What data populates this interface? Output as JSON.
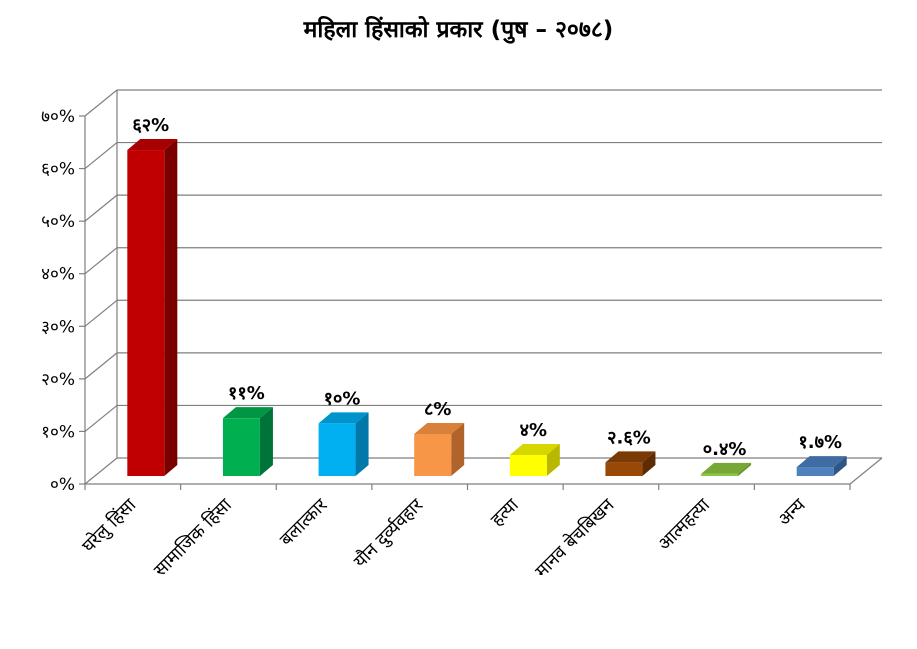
{
  "chart_data": {
    "type": "bar",
    "title": "महिला हिंसाको प्रकार (पुष – २०७८)",
    "categories": [
      "घरेलु हिंसा",
      "सामाजिक हिंसा",
      "बलात्कार",
      "यौन दुर्व्यवहार",
      "हत्या",
      "मानव बेचबिखन",
      "आत्महत्या",
      "अन्य"
    ],
    "values": [
      62,
      11,
      10,
      8,
      4,
      2.6,
      0.4,
      1.7
    ],
    "data_labels": [
      "६२%",
      "११%",
      "१०%",
      "८%",
      "४%",
      "२.६%",
      "०.४%",
      "१.७%"
    ],
    "y_ticks": [
      "०%",
      "१०%",
      "२०%",
      "३०%",
      "४०%",
      "५०%",
      "६०%",
      "७०%"
    ],
    "ylim": [
      0,
      70
    ],
    "grid": true,
    "legend": "none",
    "colors": [
      {
        "front": "#c00000",
        "side": "#7a0000",
        "top": "#a80000"
      },
      {
        "front": "#00b050",
        "side": "#00733a",
        "top": "#009644"
      },
      {
        "front": "#00b0f0",
        "side": "#0078a8",
        "top": "#0094cc"
      },
      {
        "front": "#f79646",
        "side": "#b0642a",
        "top": "#d9803a"
      },
      {
        "front": "#ffff00",
        "side": "#b8b800",
        "top": "#d6d600"
      },
      {
        "front": "#984807",
        "side": "#5e2c04",
        "top": "#7a3a06"
      },
      {
        "front": "#8cc63f",
        "side": "#5f8a28",
        "top": "#76a835"
      },
      {
        "front": "#4f81bd",
        "side": "#2f5585",
        "top": "#3f6ca3"
      }
    ]
  }
}
